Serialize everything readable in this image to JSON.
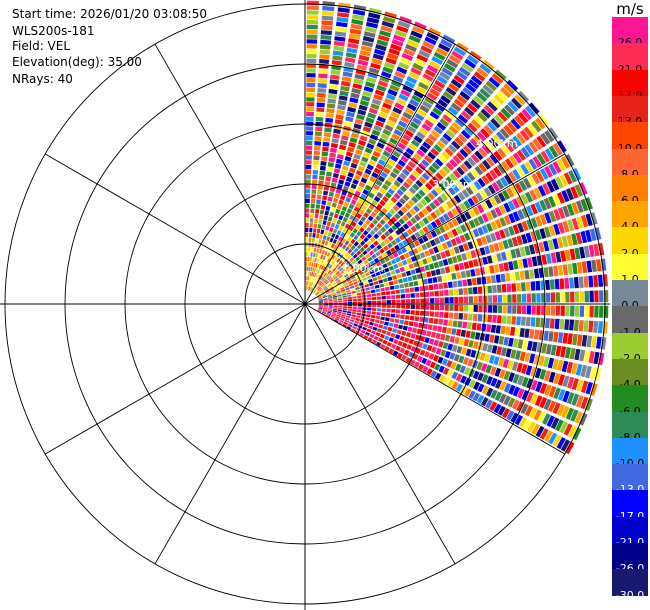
{
  "header": {
    "start_time": "Start time: 2026/01/20 03:08:50",
    "instrument": "WLS200s-181",
    "field": "Field: VEL",
    "elevation": "Elevation(deg): 35.00",
    "nrays": "NRays: 40"
  },
  "colorbar": {
    "unit": "m/s",
    "ticks": [
      "26.0",
      "21.0",
      "17.0",
      "13.0",
      "10.0",
      "8.0",
      "6.0",
      "4.0",
      "2.0",
      "1.0",
      "0.0",
      "-1.0",
      "-2.0",
      "-4.0",
      "-6.0",
      "-8.0",
      "-10.0",
      "-13.0",
      "-17.0",
      "-21.0",
      "-26.0",
      "-30.0"
    ],
    "colors": [
      "#ff1493",
      "#ff2d55",
      "#ff0000",
      "#e8231a",
      "#ff4500",
      "#ff6633",
      "#ff7f00",
      "#ffa500",
      "#ffd700",
      "#ffff33",
      "#778899",
      "#696969",
      "#9acd32",
      "#6b8e23",
      "#228b22",
      "#2e8b57",
      "#1e90ff",
      "#4169e1",
      "#0000ff",
      "#0000cd",
      "#00008b",
      "#191970"
    ]
  },
  "chart_data": {
    "type": "heatmap",
    "subtype": "polar PPI sector scan",
    "title": "",
    "field": "VEL",
    "units": "m/s",
    "elevation_deg": 35.0,
    "nrays": 40,
    "azimuth_range_deg": [
      0,
      120
    ],
    "range_ring_labels": [
      "1.00km",
      "3.00km",
      "4.00km"
    ],
    "color_scale": {
      "min": -30.0,
      "max": 26.0
    },
    "grid": true,
    "legend": "right"
  }
}
